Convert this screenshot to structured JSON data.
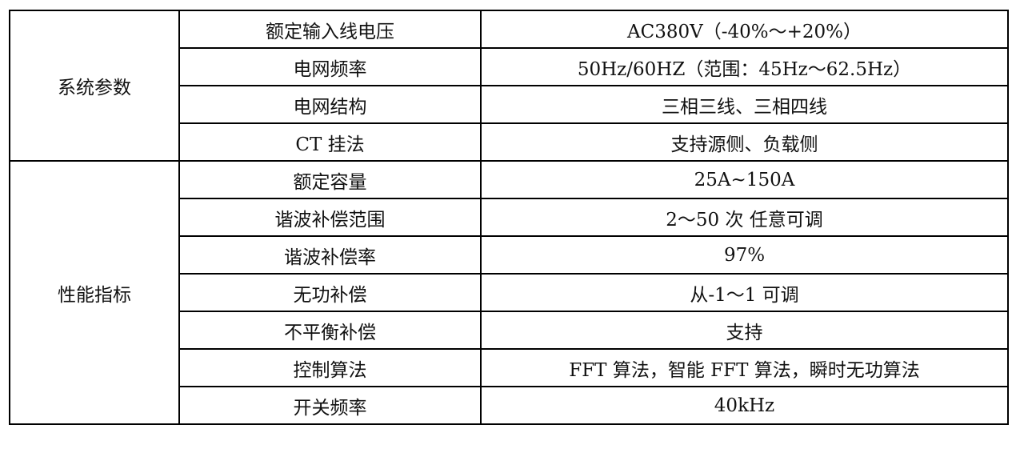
{
  "groups": [
    {
      "label": "系统参数",
      "rows": [
        {
          "param": "额定输入线电压",
          "value": "AC380V（-40%～+20%）"
        },
        {
          "param": "电网频率",
          "value": "50Hz/60HZ（范围：45Hz～62.5Hz）"
        },
        {
          "param": "电网结构",
          "value": "三相三线、三相四线"
        },
        {
          "param": "CT 挂法",
          "value": "支持源侧、负载侧"
        }
      ]
    },
    {
      "label": "性能指标",
      "rows": [
        {
          "param": "额定容量",
          "value": "25A~150A"
        },
        {
          "param": "谐波补偿范围",
          "value": "2～50 次 任意可调"
        },
        {
          "param": "谐波补偿率",
          "value": "97%"
        },
        {
          "param": "无功补偿",
          "value": "从-1～1 可调"
        },
        {
          "param": "不平衡补偿",
          "value": "支持"
        },
        {
          "param": "控制算法",
          "value": "FFT 算法，智能 FFT 算法，瞬时无功算法"
        },
        {
          "param": "开关频率",
          "value": "40kHz"
        }
      ]
    }
  ]
}
